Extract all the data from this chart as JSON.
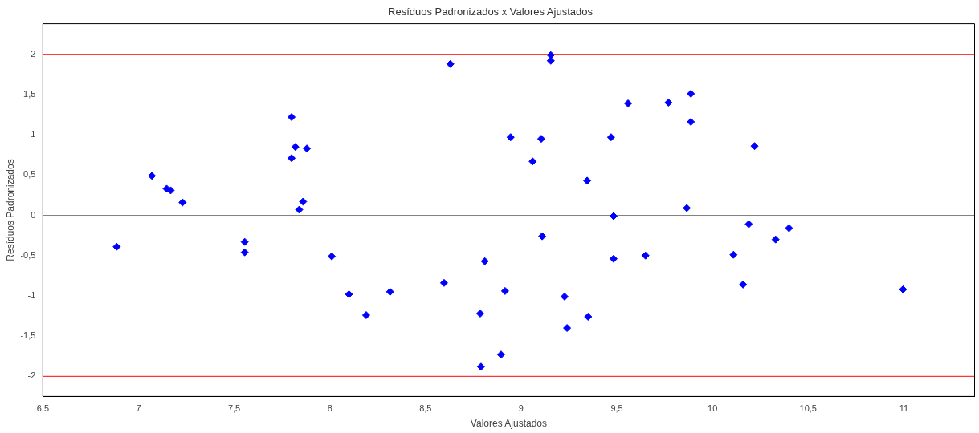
{
  "chart_data": {
    "type": "scatter",
    "title": "Resíduos Padronizados x Valores Ajustados",
    "xlabel": "Valores Ajustados",
    "ylabel": "Resíduos Padronizados",
    "x": [
      6.886,
      7.07,
      7.147,
      7.168,
      7.23,
      7.555,
      7.555,
      7.8,
      7.8,
      7.82,
      7.88,
      7.84,
      7.86,
      8.01,
      8.1,
      8.19,
      8.315,
      8.597,
      8.63,
      8.786,
      8.79,
      8.81,
      8.895,
      8.916,
      8.945,
      9.06,
      9.105,
      9.11,
      9.155,
      9.155,
      9.227,
      9.24,
      9.345,
      9.35,
      9.47,
      9.483,
      9.483,
      9.559,
      9.65,
      9.77,
      9.866,
      9.887,
      9.887,
      10.11,
      10.16,
      10.19,
      10.22,
      10.33,
      10.4,
      10.996
    ],
    "series": [
      {
        "color": "#0000ff",
        "values": [
          -0.39,
          0.49,
          0.33,
          0.31,
          0.16,
          -0.33,
          -0.46,
          1.22,
          0.71,
          0.85,
          0.83,
          0.07,
          0.17,
          -0.51,
          -0.98,
          -1.24,
          -0.95,
          -0.84,
          1.88,
          -1.22,
          -1.88,
          -0.57,
          -1.73,
          -0.94,
          0.97,
          0.67,
          0.95,
          -0.26,
          1.99,
          1.92,
          -1.01,
          -1.4,
          0.43,
          -1.26,
          0.97,
          -0.01,
          -0.54,
          1.39,
          -0.5,
          1.4,
          0.09,
          1.51,
          1.16,
          -0.49,
          -0.86,
          -0.11,
          0.86,
          -0.3,
          -0.16,
          -0.92
        ]
      }
    ],
    "xlim": [
      6.5,
      11.37
    ],
    "ylim": [
      -2.25,
      2.38
    ],
    "xticks": [
      {
        "value": 6.5,
        "label": "6,5"
      },
      7,
      {
        "value": 7.5,
        "label": "7,5"
      },
      8,
      {
        "value": 8.5,
        "label": "8,5"
      },
      9,
      {
        "value": 9.5,
        "label": "9,5"
      },
      10,
      {
        "value": 10.5,
        "label": "10,5"
      },
      11
    ],
    "yticks": [
      -2,
      {
        "value": -1.5,
        "label": "-1,5"
      },
      -1,
      {
        "value": -0.5,
        "label": "-0,5"
      },
      0,
      {
        "value": 0.5,
        "label": "0,5"
      },
      1,
      {
        "value": 1.5,
        "label": "1,5"
      },
      2
    ],
    "ref_lines": [
      {
        "axis": "y",
        "value": 2,
        "color": "#ff0000"
      },
      {
        "axis": "y",
        "value": -2,
        "color": "#ff0000"
      },
      {
        "axis": "y",
        "value": 0,
        "color": "#808080"
      }
    ],
    "grid": false,
    "legend": false,
    "marker": "diamond"
  }
}
